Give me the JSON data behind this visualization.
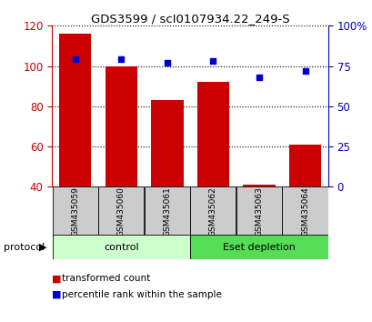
{
  "title": "GDS3599 / scI0107934.22_249-S",
  "samples": [
    "GSM435059",
    "GSM435060",
    "GSM435061",
    "GSM435062",
    "GSM435063",
    "GSM435064"
  ],
  "red_values": [
    116,
    100,
    83,
    92,
    41,
    61
  ],
  "blue_values": [
    79,
    79,
    77,
    78,
    68,
    72
  ],
  "ylim_left": [
    40,
    120
  ],
  "ylim_right": [
    0,
    100
  ],
  "yticks_left": [
    40,
    60,
    80,
    100,
    120
  ],
  "yticks_right": [
    0,
    25,
    50,
    75,
    100
  ],
  "ytick_labels_right": [
    "0",
    "25",
    "50",
    "75",
    "100%"
  ],
  "groups": [
    {
      "label": "control",
      "indices": [
        0,
        1,
        2
      ],
      "color": "#ccffcc"
    },
    {
      "label": "Eset depletion",
      "indices": [
        3,
        4,
        5
      ],
      "color": "#55dd55"
    }
  ],
  "bar_color": "#cc0000",
  "dot_color": "#0000cc",
  "bar_width": 0.7,
  "label_color_left": "#cc0000",
  "label_color_right": "#0000cc",
  "sample_box_color": "#cccccc",
  "legend_items": [
    {
      "label": "transformed count",
      "color": "#cc0000"
    },
    {
      "label": "percentile rank within the sample",
      "color": "#0000cc"
    }
  ],
  "protocol_label": "protocol"
}
